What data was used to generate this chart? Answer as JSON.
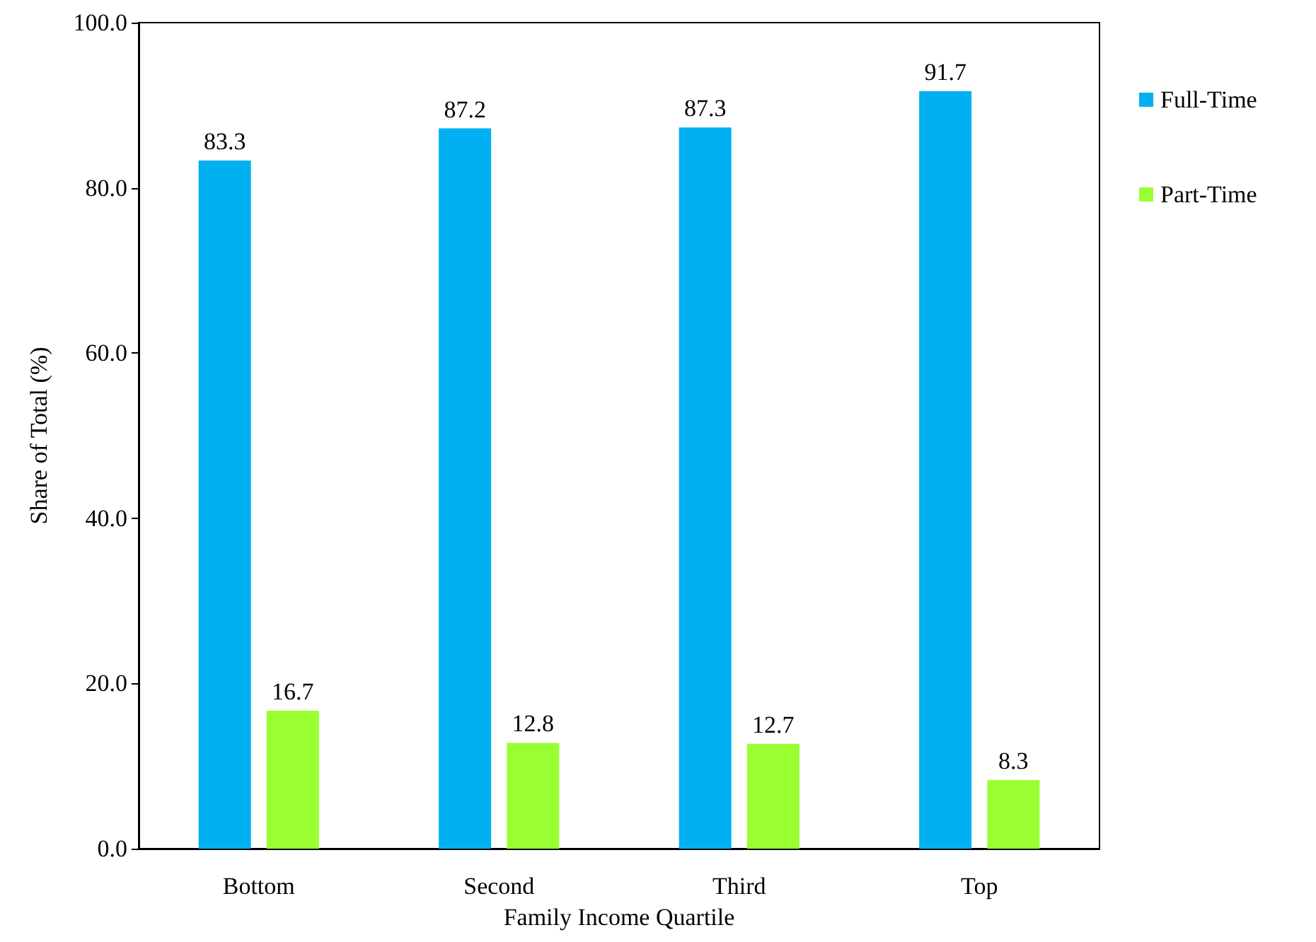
{
  "chart_data": {
    "type": "bar",
    "xlabel": "Family Income Quartile",
    "ylabel": "Share of Total (%)",
    "categories": [
      "Bottom",
      "Second",
      "Third",
      "Top"
    ],
    "series": [
      {
        "name": "Full-Time",
        "color": "#00b0f0",
        "values": [
          83.3,
          87.2,
          87.3,
          91.7
        ]
      },
      {
        "name": "Part-Time",
        "color": "#99ff33",
        "values": [
          16.7,
          12.8,
          12.7,
          8.3
        ]
      }
    ],
    "ylim": [
      0,
      100
    ],
    "yticks": [
      {
        "value": 0,
        "label": "0.0"
      },
      {
        "value": 20,
        "label": "20.0"
      },
      {
        "value": 40,
        "label": "40.0"
      },
      {
        "value": 60,
        "label": "60.0"
      },
      {
        "value": 80,
        "label": "80.0"
      },
      {
        "value": 100,
        "label": "100.0"
      }
    ],
    "data_labels": true,
    "grid": false,
    "legend": "top right"
  }
}
